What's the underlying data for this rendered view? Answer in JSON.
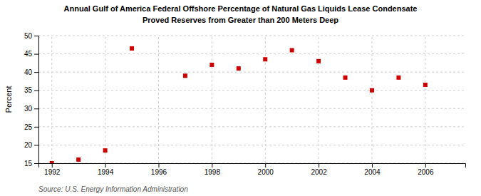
{
  "chart_data": {
    "type": "scatter",
    "title": "Annual Gulf of America Federal Offshore Percentage of Natural Gas Liquids Lease Condensate",
    "subtitle": "Proved Reserves from Greater than 200 Meters Deep",
    "y_label": "Percent",
    "source": "Source: U.S. Energy Information Administration",
    "x": [
      1992,
      1993,
      1994,
      1995,
      1997,
      1998,
      1999,
      2000,
      2001,
      2002,
      2003,
      2004,
      2005,
      2006
    ],
    "values": [
      15.0,
      16.0,
      18.5,
      46.5,
      39.0,
      42.0,
      41.0,
      43.5,
      46.0,
      43.0,
      38.5,
      35.0,
      38.5,
      36.5
    ],
    "color": "#cc0000",
    "marker": "square",
    "xlim": [
      1991.5,
      2007.5
    ],
    "ylim": [
      15,
      50
    ],
    "xticks": [
      1992,
      1994,
      1996,
      1998,
      2000,
      2002,
      2004,
      2006
    ],
    "yticks": [
      15,
      20,
      25,
      30,
      35,
      40,
      45,
      50
    ],
    "grid": true
  }
}
